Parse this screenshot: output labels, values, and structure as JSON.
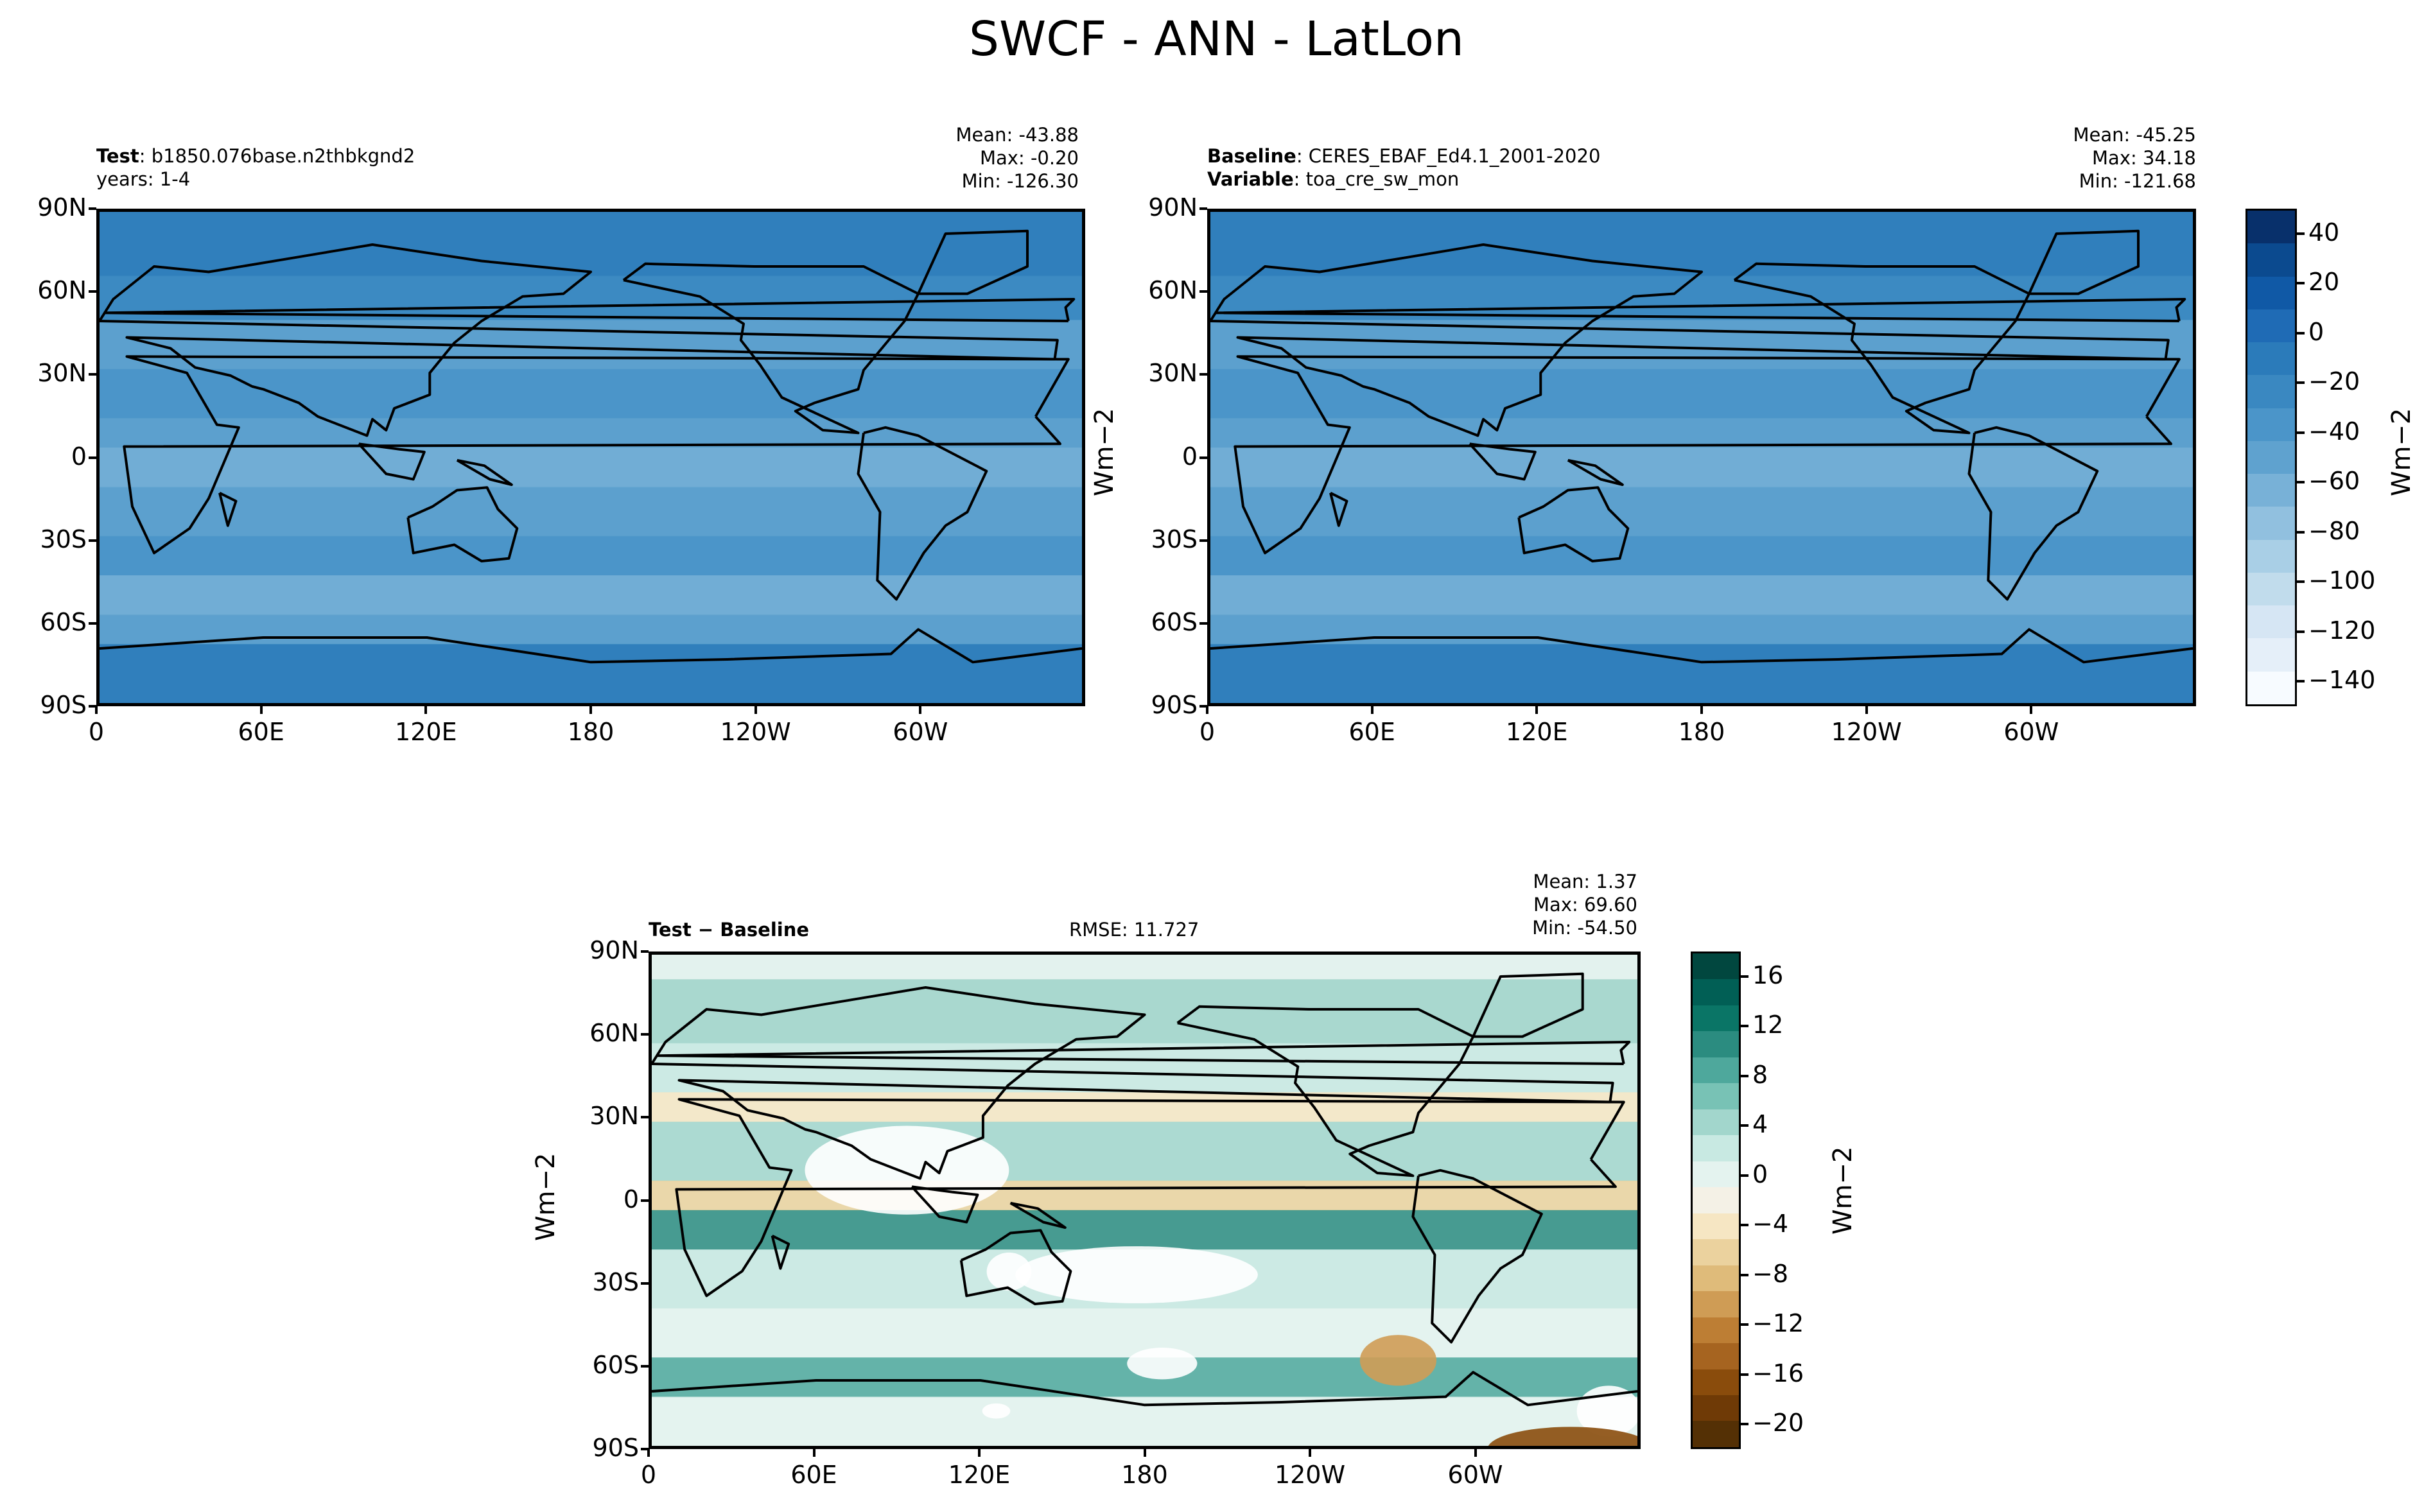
{
  "figure_title": "SWCF - ANN - LatLon",
  "panels": {
    "test": {
      "label_bold": "Test",
      "label_rest": ": b1850.076base.n2thbkgnd2",
      "line2": "years: 1-4",
      "stats": [
        "Mean: -43.88",
        "Max: -0.20",
        "Min: -126.30"
      ]
    },
    "baseline": {
      "label_bold": "Baseline",
      "label_rest": ": CERES_EBAF_Ed4.1_2001-2020",
      "line2_bold": "Variable",
      "line2_rest": ": toa_cre_sw_mon",
      "stats": [
        "Mean: -45.25",
        "Max: 34.18",
        "Min: -121.68"
      ]
    },
    "diff": {
      "label": "Test − Baseline",
      "rmse": "RMSE: 11.727",
      "stats": [
        "Mean:  1.37",
        "Max: 69.60",
        "Min: -54.50"
      ]
    }
  },
  "lat_ticks": [
    "90N",
    "60N",
    "30N",
    "0",
    "30S",
    "60S",
    "90S"
  ],
  "lon_ticks": [
    "0",
    "60E",
    "120E",
    "180",
    "120W",
    "60W"
  ],
  "units": "Wm−2",
  "colorbars": {
    "main": {
      "ticks": [
        "40",
        "20",
        "0",
        "−20",
        "−40",
        "−60",
        "−80",
        "−100",
        "−120",
        "−140"
      ],
      "colors": [
        "#08306b",
        "#0b4a8f",
        "#1059a6",
        "#1f6bb5",
        "#2b7bba",
        "#3a88c1",
        "#4b95c9",
        "#5fa2cf",
        "#78b1d7",
        "#91c0df",
        "#a9cfe6",
        "#c1dcec",
        "#d6e6f4",
        "#e5eff9",
        "#f7fbff"
      ]
    },
    "diff": {
      "ticks": [
        "16",
        "12",
        "8",
        "4",
        "0",
        "−4",
        "−8",
        "−12",
        "−16",
        "−20"
      ],
      "colors": [
        "#01473f",
        "#015f55",
        "#0a7566",
        "#2b8c80",
        "#4ea89c",
        "#78c2b5",
        "#a2d6cc",
        "#c8e9e2",
        "#e4f3ef",
        "#f4f1e6",
        "#f6e6c3",
        "#ebd29e",
        "#dfbb7a",
        "#cf9c55",
        "#bd7e34",
        "#a66420",
        "#8a4c0c",
        "#6f3a06",
        "#543005"
      ]
    }
  },
  "chart_data": [
    {
      "type": "heatmap",
      "title": "Test",
      "xlabel": "",
      "ylabel": "",
      "xlim": [
        0,
        360
      ],
      "ylim": [
        -90,
        90
      ],
      "mean": -43.88,
      "max": -0.2,
      "min": -126.3,
      "colorbar_range": [
        -150,
        40
      ],
      "units": "Wm−2"
    },
    {
      "type": "heatmap",
      "title": "Baseline",
      "xlabel": "",
      "ylabel": "",
      "xlim": [
        0,
        360
      ],
      "ylim": [
        -90,
        90
      ],
      "mean": -45.25,
      "max": 34.18,
      "min": -121.68,
      "colorbar_range": [
        -150,
        40
      ],
      "units": "Wm−2"
    },
    {
      "type": "heatmap",
      "title": "Test − Baseline",
      "xlabel": "",
      "ylabel": "",
      "xlim": [
        0,
        360
      ],
      "ylim": [
        -90,
        90
      ],
      "mean": 1.37,
      "max": 69.6,
      "min": -54.5,
      "rmse": 11.727,
      "colorbar_range": [
        -20,
        18
      ],
      "units": "Wm−2"
    }
  ]
}
